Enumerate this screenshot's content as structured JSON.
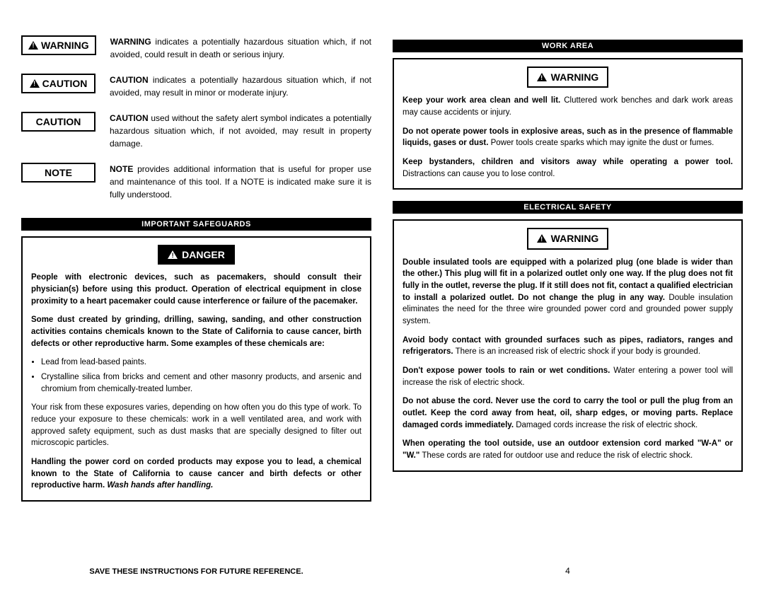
{
  "left": {
    "defs": [
      {
        "label": "WARNING",
        "icon": true,
        "text_bold": "WARNING",
        "text": " indicates a potentially hazardous situation which, if not avoided, could result in death or serious injury."
      },
      {
        "label": "CAUTION",
        "icon": true,
        "text_bold": "CAUTION",
        "text": " indicates a potentially hazardous situation which, if not avoided, may result in minor or moderate injury."
      },
      {
        "label": "CAUTION",
        "icon": false,
        "text_bold": "CAUTION",
        "text": " used without the safety alert symbol indicates a potentially hazardous situation which, if not avoided, may result in property damage."
      },
      {
        "label": "NOTE",
        "icon": false,
        "text_bold": "NOTE",
        "text": " provides additional information that is useful for proper use and maintenance of this tool. If a NOTE is indicated make sure it is fully understood."
      }
    ],
    "safeguards_header": "IMPORTANT SAFEGUARDS",
    "danger_badge": "DANGER",
    "danger_p1": "People with electronic devices, such as pacemakers, should consult their physician(s) before using this product. Operation of electrical equipment in close proximity to a heart pacemaker could cause interference or failure of the pacemaker.",
    "danger_p2": "Some dust created by grinding, drilling, sawing, sanding, and other construction activities contains chemicals known to the State of California to cause cancer, birth defects or other reproductive harm. Some examples of these chemicals are:",
    "danger_li1": "Lead from lead-based paints.",
    "danger_li2": "Crystalline silica from bricks and cement and other masonry products, and arsenic and chromium from chemically-treated lumber.",
    "danger_p3": "Your risk from these exposures varies, depending on how often you do this type of work. To reduce your exposure to these chemicals: work in a well ventilated area, and work with approved safety equipment, such as dust masks that are specially designed to filter out microscopic particles.",
    "danger_p4_bold": "Handling the power cord on corded products may expose you to lead, a chemical known to the State of California to cause cancer and birth defects or other reproductive harm.",
    "danger_p4_ital": " Wash hands after handling.",
    "footer": "SAVE THESE INSTRUCTIONS FOR FUTURE REFERENCE."
  },
  "right": {
    "work_header": "WORK AREA",
    "warning_badge": "WARNING",
    "work_p1_bold": "Keep your work area clean and well lit.",
    "work_p1": " Cluttered work benches and dark work areas may cause accidents or injury.",
    "work_p2_bold": "Do not operate power tools in explosive areas, such as in the presence of flammable liquids, gases or dust.",
    "work_p2": " Power tools create sparks which may ignite the dust or fumes.",
    "work_p3_bold": "Keep bystanders, children and visitors away while operating a power tool.",
    "work_p3": " Distractions can cause you to lose control.",
    "elec_header": "ELECTRICAL SAFETY",
    "elec_p1_bold": "Double insulated tools are equipped with a polarized plug (one blade is wider than the other.) This plug will fit in a polarized outlet only one way. If the plug does not fit fully in the outlet, reverse the plug. If it still does not fit, contact a qualified electrician to install a polarized outlet. Do not change the plug in any way.",
    "elec_p1": " Double insulation eliminates the need for the three wire grounded power cord and grounded power supply system.",
    "elec_p2_bold": "Avoid body contact with grounded surfaces such as pipes, radiators, ranges and refrigerators.",
    "elec_p2": " There is an increased risk of electric shock if your body is grounded.",
    "elec_p3_bold": "Don't expose power tools to rain or wet conditions.",
    "elec_p3": " Water entering a power tool will increase the risk of electric shock.",
    "elec_p4_bold": "Do not abuse the cord. Never use the cord to carry the tool or pull the plug from an outlet. Keep the cord away from heat, oil, sharp edges, or moving parts. Replace damaged cords immediately.",
    "elec_p4": " Damaged cords increase the risk of electric shock.",
    "elec_p5_bold": "When operating the tool outside, use an outdoor extension cord marked \"W-A\" or \"W.\"",
    "elec_p5": " These cords are rated for outdoor use and reduce the risk of electric shock.",
    "pagenum": "4"
  }
}
